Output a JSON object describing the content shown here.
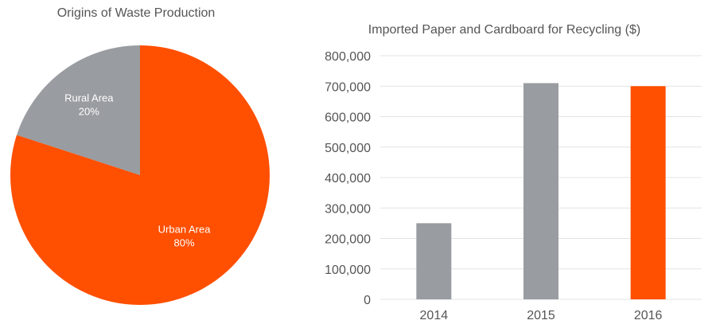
{
  "colors": {
    "accent": "#FF4F00",
    "neutral": "#999CA1",
    "title_text": "#555555",
    "axis_text": "#555555",
    "grid": "#E3E3E3",
    "slice_label": "#FFFFFF"
  },
  "chart_data": [
    {
      "type": "pie",
      "title": "Origins of Waste Production",
      "slices": [
        {
          "label": "Rural Area",
          "value": 20,
          "value_label": "20%",
          "color": "#999CA1"
        },
        {
          "label": "Urban Area",
          "value": 80,
          "value_label": "80%",
          "color": "#FF4F00"
        }
      ],
      "start_angle": "12 o'clock, Rural Area counter-clockwise"
    },
    {
      "type": "bar",
      "title": "Imported Paper and Cardboard for Recycling ($)",
      "categories": [
        "2014",
        "2015",
        "2016"
      ],
      "values": [
        250000,
        710000,
        700000
      ],
      "bar_colors": [
        "#999CA1",
        "#999CA1",
        "#FF4F00"
      ],
      "ylim": [
        0,
        800000
      ],
      "yticks": [
        0,
        100000,
        200000,
        300000,
        400000,
        500000,
        600000,
        700000,
        800000
      ],
      "ytick_labels": [
        "0",
        "100,000",
        "200,000",
        "300,000",
        "400,000",
        "500,000",
        "600,000",
        "700,000",
        "800,000"
      ],
      "grid": true,
      "xlabel": "",
      "ylabel": ""
    }
  ]
}
